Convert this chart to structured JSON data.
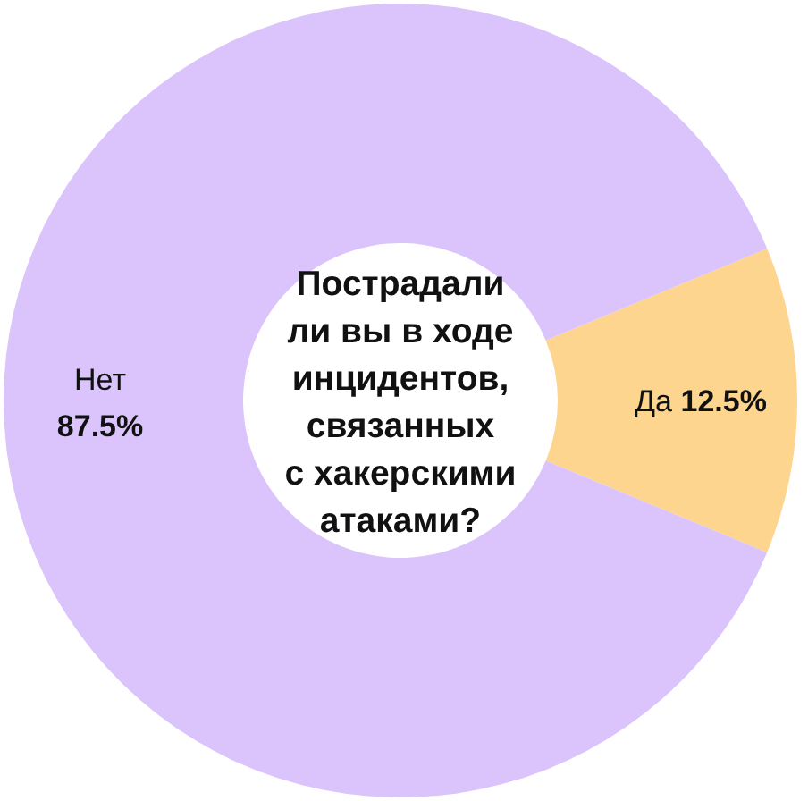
{
  "chart_data": {
    "type": "donut",
    "title": "Пострадали ли вы в ходе инцидентов, связанных с хакерскими атаками?",
    "categories": [
      "Да",
      "Нет"
    ],
    "values": [
      12.5,
      87.5
    ],
    "value_labels": [
      "12.5%",
      "87.5%"
    ],
    "colors": [
      "#fed58f",
      "#dac4fb"
    ],
    "legend": false
  }
}
